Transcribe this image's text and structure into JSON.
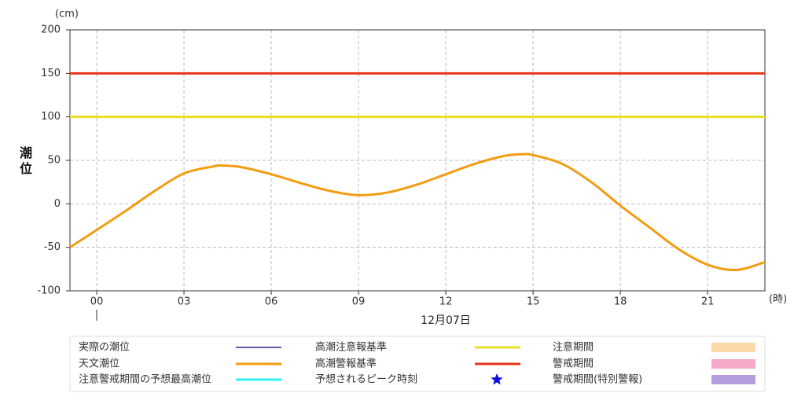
{
  "chart_data": {
    "type": "line",
    "y_label": "潮位",
    "y_unit": "(cm)",
    "x_unit": "(時)",
    "date_label": "12月07日",
    "xlim": [
      -0.92,
      22.97
    ],
    "ylim": [
      -100,
      200
    ],
    "yticks": [
      -100,
      -50,
      0,
      50,
      100,
      150,
      200
    ],
    "xticks": [
      {
        "value": 0,
        "label": "00"
      },
      {
        "value": 3,
        "label": "03"
      },
      {
        "value": 6,
        "label": "06"
      },
      {
        "value": 9,
        "label": "09"
      },
      12,
      15,
      18,
      21
    ],
    "grid": true,
    "x": [
      -0.92,
      0,
      1,
      2,
      3,
      4,
      4.3,
      5,
      6,
      7,
      8,
      9,
      10,
      11,
      12,
      13,
      14,
      14.6,
      15,
      16,
      17,
      18,
      19,
      20,
      21,
      22,
      22.97
    ],
    "series": [
      {
        "color": "#f39c12",
        "values": [
          -50,
          -30,
          -8,
          15,
          35,
          43,
          44,
          42,
          34,
          24,
          15,
          10,
          13,
          22,
          34,
          46,
          55,
          57,
          56,
          46,
          25,
          -2,
          -27,
          -52,
          -70,
          -76,
          -67
        ]
      }
    ],
    "reference_lines": [
      {
        "value": 100,
        "color": "#e8e02a"
      },
      {
        "value": 150,
        "color": "#e8341c"
      }
    ],
    "legend": [
      {
        "name": "実際の潮位",
        "color": "#3b1f8a",
        "symbol": "line"
      },
      {
        "name": "高潮注意報基準",
        "color": "#e8e02a",
        "symbol": "line"
      },
      {
        "name": "注意期間",
        "color": "#fcd9a8",
        "symbol": "band"
      },
      {
        "name": "天文潮位",
        "color": "#f39c12",
        "symbol": "line"
      },
      {
        "name": "高潮警報基準",
        "color": "#e8341c",
        "symbol": "line"
      },
      {
        "name": "警戒期間",
        "color": "#f6a9c8",
        "symbol": "band"
      },
      {
        "name": "注意警戒期間の予想最高潮位",
        "color": "#2ff0f0",
        "symbol": "line"
      },
      {
        "name": "予想されるピーク時刻",
        "color": "#1010e0",
        "symbol": "star"
      },
      {
        "name": "警戒期間(特別警報)",
        "color": "#b39ddb",
        "symbol": "band"
      }
    ]
  }
}
